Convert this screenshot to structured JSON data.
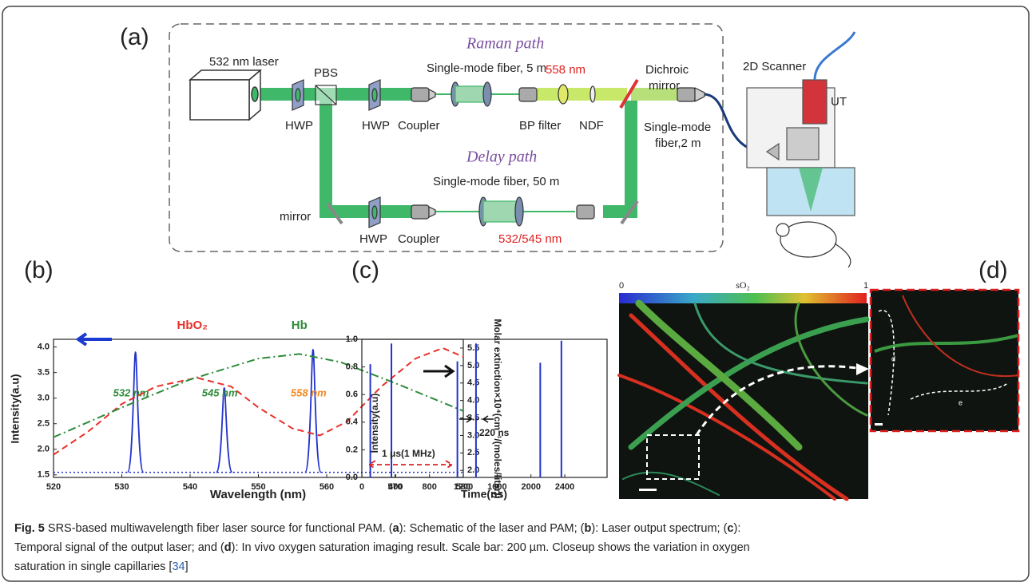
{
  "panel_a": {
    "label": "(a)",
    "laser": "532 nm laser",
    "pbs": "PBS",
    "hwp": [
      "HWP",
      "HWP",
      "HWP"
    ],
    "coupler": [
      "Coupler",
      "Coupler"
    ],
    "raman_path": "Raman path",
    "fiber_5m": "Single-mode fiber, 5 m",
    "wavelength_558": "558 nm",
    "dichroic": [
      "Dichroic",
      "mirror"
    ],
    "bp_filter": "BP filter",
    "ndf": "NDF",
    "fiber_2m": [
      "Single-mode",
      "fiber,2 m"
    ],
    "delay_path": "Delay path",
    "fiber_50m": "Single-mode fiber, 50 m",
    "mirror": "mirror",
    "wavelength_532_545": "532/545 nm",
    "scanner": "2D Scanner",
    "ut": "UT"
  },
  "chart_data": [
    {
      "type": "line",
      "panel_label": "(b)",
      "x_label": "Wavelength (nm)",
      "y_label": "Intensity(a.u)",
      "y2_label": "Molar extinction×10⁴(cm⁻¹/(moles/liter))",
      "xlim": [
        520,
        580
      ],
      "xticks": [
        520,
        530,
        540,
        550,
        560,
        570,
        580
      ],
      "ylim": [
        1.45,
        4.15
      ],
      "yticks": [
        1.5,
        {
          "value": 2,
          "label": "2.0"
        },
        2.5,
        {
          "value": 3,
          "label": "3.0"
        },
        3.5,
        {
          "value": 4,
          "label": "4.0"
        }
      ],
      "y2lim": [
        1.8,
        5.75
      ],
      "y2ticks": [
        {
          "value": 2,
          "label": "2.0"
        },
        2.5,
        {
          "value": 3,
          "label": "3.0"
        },
        3.5,
        {
          "value": 4,
          "label": "4.0"
        },
        4.5,
        {
          "value": 5,
          "label": "5.0"
        },
        5.5
      ],
      "series": [
        {
          "name": "HbO₂",
          "color": "#e8312a",
          "axis": "y2",
          "x": [
            520,
            525,
            530,
            535,
            541,
            546,
            550,
            555,
            559,
            563,
            568,
            573,
            577,
            580
          ],
          "values": [
            2.45,
            3.1,
            3.9,
            4.4,
            4.65,
            4.4,
            3.8,
            3.2,
            3.0,
            3.4,
            4.4,
            5.2,
            5.5,
            5.25
          ]
        },
        {
          "name": "Hb",
          "color": "#2e8b3a",
          "axis": "y2",
          "x": [
            520,
            530,
            540,
            550,
            556,
            562,
            570,
            580
          ],
          "values": [
            2.95,
            3.8,
            4.6,
            5.2,
            5.33,
            5.1,
            4.5,
            3.7
          ]
        }
      ],
      "spectrum": {
        "color": "#2233cc",
        "x": [
          532,
          545,
          558
        ],
        "values": [
          3.9,
          3.2,
          3.95
        ],
        "baseline": 1.55,
        "peak_labels": [
          "532 nm",
          "545 nm",
          "558 nm"
        ],
        "peak_label_colors": [
          "#2e8b3a",
          "#2e8b3a",
          "#f08a24"
        ]
      }
    },
    {
      "type": "stem",
      "panel_label": "(c)",
      "x_label": "Time(ns)",
      "y_label": "Intensity(a.u)",
      "color": "#2233cc",
      "xlim": [
        0,
        2900
      ],
      "xticks": [
        0,
        400,
        800,
        1200,
        1600,
        2000,
        2400
      ],
      "ylim": [
        0,
        1
      ],
      "yticks": [
        {
          "value": 0,
          "label": "0.0"
        },
        0.2,
        0.4,
        0.6,
        0.8,
        {
          "value": 1,
          "label": "1.0"
        }
      ],
      "x": [
        100,
        350,
        1130,
        1350,
        2110,
        2360
      ],
      "values": [
        0.82,
        0.97,
        0.84,
        0.97,
        0.83,
        0.99
      ],
      "annotations": [
        "220 ns",
        "1 μs(1 MHz)"
      ]
    }
  ],
  "panel_d": {
    "label": "(d)",
    "colorbar": {
      "min": "0",
      "title": "sO₂",
      "max": "1"
    },
    "closeup_labels": [
      "d",
      "e"
    ]
  },
  "caption": {
    "lines": [
      [
        "Fig. 5",
        " SRS-based multiwavelength fiber laser source for functional PAM. (",
        "a",
        "): Schematic of the laser and PAM; (",
        "b",
        "): Laser output spectrum; (",
        "c",
        "):"
      ],
      [
        "Temporal signal of the output laser; and (",
        "d",
        "): In vivo oxygen saturation imaging result. Scale bar: 200 µm. Closeup shows the variation in oxygen"
      ],
      [
        "saturation in single capillaries [",
        "34",
        "]"
      ]
    ]
  }
}
